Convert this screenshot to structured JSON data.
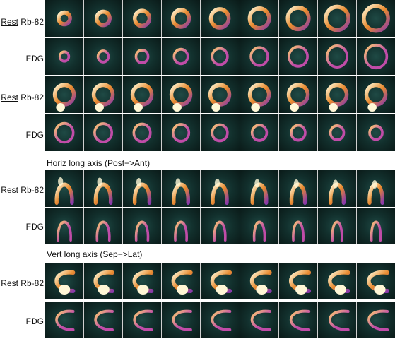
{
  "rows": [
    {
      "rest_word": "Rest",
      "tracer": " Rb-82",
      "kind": "rest",
      "view": "sa-a"
    },
    {
      "rest_word": "",
      "tracer": "FDG",
      "kind": "fdg",
      "view": "sa-a"
    },
    {
      "rest_word": "Rest",
      "tracer": " Rb-82",
      "kind": "rest",
      "view": "sa-b"
    },
    {
      "rest_word": "",
      "tracer": "FDG",
      "kind": "fdg",
      "view": "sa-b"
    },
    {
      "rest_word": "Rest",
      "tracer": " Rb-82",
      "kind": "rest",
      "view": "hla"
    },
    {
      "rest_word": "",
      "tracer": "FDG",
      "kind": "fdg",
      "view": "hla"
    },
    {
      "rest_word": "Rest",
      "tracer": " Rb-82",
      "kind": "rest",
      "view": "vla"
    },
    {
      "rest_word": "",
      "tracer": "FDG",
      "kind": "fdg",
      "view": "vla"
    }
  ],
  "sections": {
    "horiz": "Horiz long axis (Post−>Ant)",
    "vert": "Vert long axis (Sep−>Lat)"
  },
  "tiles_per_row": 9,
  "colors": {
    "background": "#0f2a27",
    "rest_wall": "#e88a2e",
    "rest_hot": "#fff7d6",
    "rest_low": "#8a3aa8",
    "fdg_wall": "#c04ca8",
    "fdg_hot": "#ffd070"
  }
}
